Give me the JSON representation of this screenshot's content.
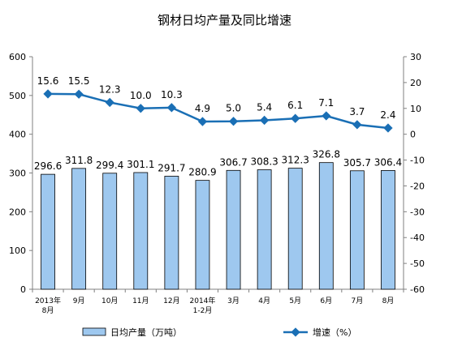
{
  "chart_data": {
    "type": "bar",
    "title": "钢材日均产量及同比增速",
    "categories": [
      "2013年\n8月",
      "9月",
      "10月",
      "11月",
      "12月",
      "2014年\n1-2月",
      "3月",
      "4月",
      "5月",
      "6月",
      "7月",
      "8月"
    ],
    "series": [
      {
        "name": "日均产量（万吨）",
        "type": "bar",
        "axis": "left",
        "color": "#9ec8ef",
        "values": [
          296.6,
          311.8,
          299.4,
          301.1,
          291.7,
          280.9,
          306.7,
          308.3,
          312.3,
          326.8,
          305.7,
          306.4
        ]
      },
      {
        "name": "增速（%）",
        "type": "line",
        "axis": "right",
        "color": "#1a6fb5",
        "values": [
          15.6,
          15.5,
          12.3,
          10.0,
          10.3,
          4.9,
          5.0,
          5.4,
          6.1,
          7.1,
          3.7,
          2.4
        ]
      }
    ],
    "y_left": {
      "min": 0,
      "max": 600,
      "ticks": [
        0,
        100,
        200,
        300,
        400,
        500,
        600
      ]
    },
    "y_right": {
      "min": -60,
      "max": 30,
      "ticks": [
        -60,
        -50,
        -40,
        -30,
        -20,
        -10,
        0,
        10,
        20,
        30
      ]
    },
    "legend_position": "bottom",
    "grid": false
  }
}
